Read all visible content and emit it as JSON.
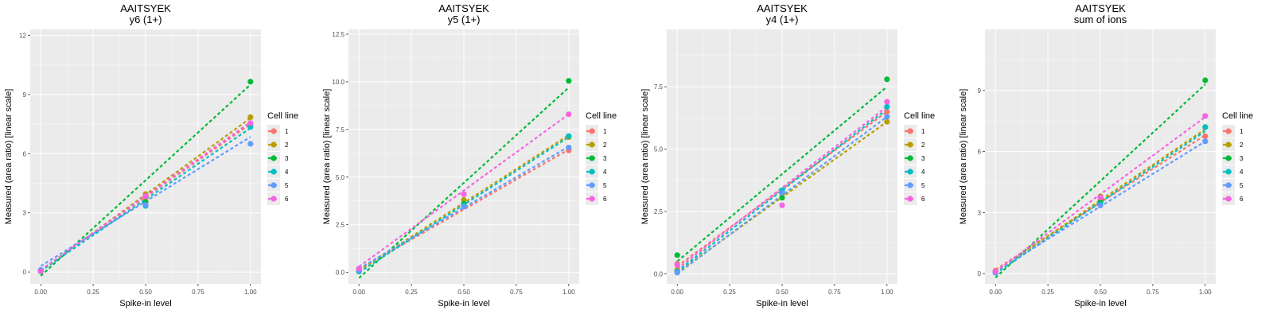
{
  "chart_data": [
    {
      "type": "scatter",
      "title": "AAITSYEK",
      "subtitle": "y6 (1+)",
      "xlabel": "Spike-in level",
      "ylabel": "Measured (area ratio) [linear scale]",
      "xlim": [
        -0.05,
        1.05
      ],
      "ylim": [
        -0.6,
        12.3
      ],
      "xticks": [
        0.0,
        0.25,
        0.5,
        0.75,
        1.0
      ],
      "xtick_labels": [
        "0.00",
        "0.25",
        "0.50",
        "0.75",
        "1.00"
      ],
      "yticks": [
        0,
        3,
        6,
        9,
        12
      ],
      "ytick_labels": [
        "0",
        "3",
        "6",
        "9",
        "12"
      ],
      "legend_title": "Cell line",
      "series": [
        {
          "name": "1",
          "x": [
            0,
            0.5,
            1
          ],
          "y": [
            0.05,
            3.75,
            7.5
          ]
        },
        {
          "name": "2",
          "x": [
            0,
            0.5,
            1
          ],
          "y": [
            0.08,
            3.95,
            7.85
          ]
        },
        {
          "name": "3",
          "x": [
            0,
            0.5,
            1
          ],
          "y": [
            0.03,
            3.55,
            9.65
          ]
        },
        {
          "name": "4",
          "x": [
            0,
            0.5,
            1
          ],
          "y": [
            0.06,
            3.35,
            7.35
          ]
        },
        {
          "name": "5",
          "x": [
            0,
            0.5,
            1
          ],
          "y": [
            0.1,
            3.4,
            6.5
          ]
        },
        {
          "name": "6",
          "x": [
            0,
            0.5,
            1
          ],
          "y": [
            0.04,
            3.85,
            7.55
          ]
        }
      ],
      "fit_lines": [
        {
          "name": "1",
          "y0": 0.1,
          "y1": 7.5
        },
        {
          "name": "2",
          "y0": 0.05,
          "y1": 7.8
        },
        {
          "name": "3",
          "y0": -0.2,
          "y1": 9.5
        },
        {
          "name": "4",
          "y0": 0.05,
          "y1": 7.3
        },
        {
          "name": "5",
          "y0": 0.3,
          "y1": 6.85
        },
        {
          "name": "6",
          "y0": 0.1,
          "y1": 7.6
        }
      ]
    },
    {
      "type": "scatter",
      "title": "AAITSYEK",
      "subtitle": "y5 (1+)",
      "xlabel": "Spike-in level",
      "ylabel": "Measured (area ratio) [linear scale]",
      "xlim": [
        -0.05,
        1.05
      ],
      "ylim": [
        -0.6,
        12.75
      ],
      "xticks": [
        0.0,
        0.25,
        0.5,
        0.75,
        1.0
      ],
      "xtick_labels": [
        "0.00",
        "0.25",
        "0.50",
        "0.75",
        "1.00"
      ],
      "yticks": [
        0,
        2.5,
        5,
        7.5,
        10,
        12.5
      ],
      "ytick_labels": [
        "0.0",
        "2.5",
        "5.0",
        "7.5",
        "10.0",
        "12.5"
      ],
      "legend_title": "Cell line",
      "series": [
        {
          "name": "1",
          "x": [
            0,
            0.5,
            1
          ],
          "y": [
            0.15,
            3.55,
            6.4
          ]
        },
        {
          "name": "2",
          "x": [
            0,
            0.5,
            1
          ],
          "y": [
            0.1,
            3.8,
            7.1
          ]
        },
        {
          "name": "3",
          "x": [
            0,
            0.5,
            1
          ],
          "y": [
            0.05,
            3.6,
            10.05
          ]
        },
        {
          "name": "4",
          "x": [
            0,
            0.5,
            1
          ],
          "y": [
            0.05,
            3.5,
            7.15
          ]
        },
        {
          "name": "5",
          "x": [
            0,
            0.5,
            1
          ],
          "y": [
            0.1,
            3.45,
            6.55
          ]
        },
        {
          "name": "6",
          "x": [
            0,
            0.5,
            1
          ],
          "y": [
            0.2,
            4.1,
            8.3
          ]
        }
      ],
      "fit_lines": [
        {
          "name": "1",
          "y0": 0.15,
          "y1": 6.45
        },
        {
          "name": "2",
          "y0": 0.1,
          "y1": 7.2
        },
        {
          "name": "3",
          "y0": -0.3,
          "y1": 9.7
        },
        {
          "name": "4",
          "y0": 0.0,
          "y1": 7.1
        },
        {
          "name": "5",
          "y0": 0.2,
          "y1": 6.6
        },
        {
          "name": "6",
          "y0": 0.3,
          "y1": 8.3
        }
      ]
    },
    {
      "type": "scatter",
      "title": "AAITSYEK",
      "subtitle": "y4 (1+)",
      "xlabel": "Spike-in level",
      "ylabel": "Measured (area ratio) [linear scale]",
      "xlim": [
        -0.05,
        1.05
      ],
      "ylim": [
        -0.4,
        9.8
      ],
      "xticks": [
        0.0,
        0.25,
        0.5,
        0.75,
        1.0
      ],
      "xtick_labels": [
        "0.00",
        "0.25",
        "0.50",
        "0.75",
        "1.00"
      ],
      "yticks": [
        0,
        2.5,
        5,
        7.5
      ],
      "ytick_labels": [
        "0.0",
        "2.5",
        "5.0",
        "7.5"
      ],
      "legend_title": "Cell line",
      "series": [
        {
          "name": "1",
          "x": [
            0,
            0.5,
            1
          ],
          "y": [
            0.4,
            3.3,
            6.5
          ]
        },
        {
          "name": "2",
          "x": [
            0,
            0.5,
            1
          ],
          "y": [
            0.15,
            3.2,
            6.1
          ]
        },
        {
          "name": "3",
          "x": [
            0,
            0.5,
            1
          ],
          "y": [
            0.75,
            3.05,
            7.8
          ]
        },
        {
          "name": "4",
          "x": [
            0,
            0.5,
            1
          ],
          "y": [
            0.1,
            3.35,
            6.7
          ]
        },
        {
          "name": "5",
          "x": [
            0,
            0.5,
            1
          ],
          "y": [
            0.05,
            3.25,
            6.3
          ]
        },
        {
          "name": "6",
          "x": [
            0,
            0.5,
            1
          ],
          "y": [
            0.35,
            2.75,
            6.9
          ]
        }
      ],
      "fit_lines": [
        {
          "name": "1",
          "y0": 0.3,
          "y1": 6.5
        },
        {
          "name": "2",
          "y0": 0.05,
          "y1": 6.1
        },
        {
          "name": "3",
          "y0": 0.5,
          "y1": 7.5
        },
        {
          "name": "4",
          "y0": 0.1,
          "y1": 6.6
        },
        {
          "name": "5",
          "y0": 0.0,
          "y1": 6.3
        },
        {
          "name": "6",
          "y0": 0.2,
          "y1": 6.7
        }
      ]
    },
    {
      "type": "scatter",
      "title": "AAITSYEK",
      "subtitle": "sum of ions",
      "xlabel": "Spike-in level",
      "ylabel": "Measured (area ratio) [linear scale]",
      "xlim": [
        -0.05,
        1.05
      ],
      "ylim": [
        -0.5,
        12.0
      ],
      "xticks": [
        0.0,
        0.25,
        0.5,
        0.75,
        1.0
      ],
      "xtick_labels": [
        "0.00",
        "0.25",
        "0.50",
        "0.75",
        "1.00"
      ],
      "yticks": [
        0,
        3,
        6,
        9
      ],
      "ytick_labels": [
        "0",
        "3",
        "6",
        "9"
      ],
      "legend_title": "Cell line",
      "series": [
        {
          "name": "1",
          "x": [
            0,
            0.5,
            1
          ],
          "y": [
            0.15,
            3.6,
            6.75
          ]
        },
        {
          "name": "2",
          "x": [
            0,
            0.5,
            1
          ],
          "y": [
            0.1,
            3.8,
            7.2
          ]
        },
        {
          "name": "3",
          "x": [
            0,
            0.5,
            1
          ],
          "y": [
            0.05,
            3.5,
            9.5
          ]
        },
        {
          "name": "4",
          "x": [
            0,
            0.5,
            1
          ],
          "y": [
            0.05,
            3.4,
            7.2
          ]
        },
        {
          "name": "5",
          "x": [
            0,
            0.5,
            1
          ],
          "y": [
            0.05,
            3.35,
            6.5
          ]
        },
        {
          "name": "6",
          "x": [
            0,
            0.5,
            1
          ],
          "y": [
            0.1,
            3.75,
            7.75
          ]
        }
      ],
      "fit_lines": [
        {
          "name": "1",
          "y0": 0.2,
          "y1": 6.8
        },
        {
          "name": "2",
          "y0": 0.1,
          "y1": 7.1
        },
        {
          "name": "3",
          "y0": -0.2,
          "y1": 9.3
        },
        {
          "name": "4",
          "y0": 0.0,
          "y1": 7.0
        },
        {
          "name": "5",
          "y0": 0.1,
          "y1": 6.5
        },
        {
          "name": "6",
          "y0": 0.1,
          "y1": 7.7
        }
      ]
    }
  ],
  "colors": {
    "1": "#F8766D",
    "2": "#B79F00",
    "3": "#00BA38",
    "4": "#00BFC4",
    "5": "#619CFF",
    "6": "#F564E3",
    "panel_bg": "#EBEBEB",
    "grid": "#FFFFFF"
  }
}
